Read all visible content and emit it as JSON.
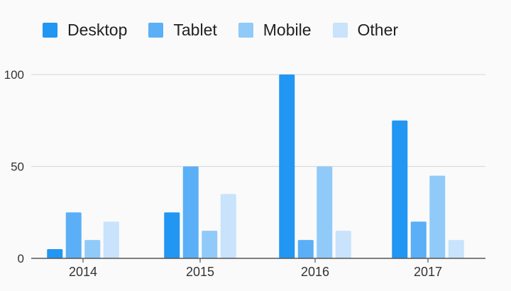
{
  "chart_data": {
    "type": "bar",
    "title": "",
    "xlabel": "",
    "ylabel": "",
    "categories": [
      "2014",
      "2015",
      "2016",
      "2017"
    ],
    "series": [
      {
        "name": "Desktop",
        "values": [
          5,
          25,
          100,
          75
        ],
        "color": "#2196f3"
      },
      {
        "name": "Tablet",
        "values": [
          25,
          50,
          10,
          20
        ],
        "color": "#5aaff6"
      },
      {
        "name": "Mobile",
        "values": [
          10,
          15,
          50,
          45
        ],
        "color": "#90caf9"
      },
      {
        "name": "Other",
        "values": [
          20,
          35,
          15,
          10
        ],
        "color": "#c8e3fb"
      }
    ],
    "ylim": [
      0,
      100
    ],
    "yticks": [
      0,
      50,
      100
    ],
    "grid": true,
    "legend_position": "top-left"
  }
}
